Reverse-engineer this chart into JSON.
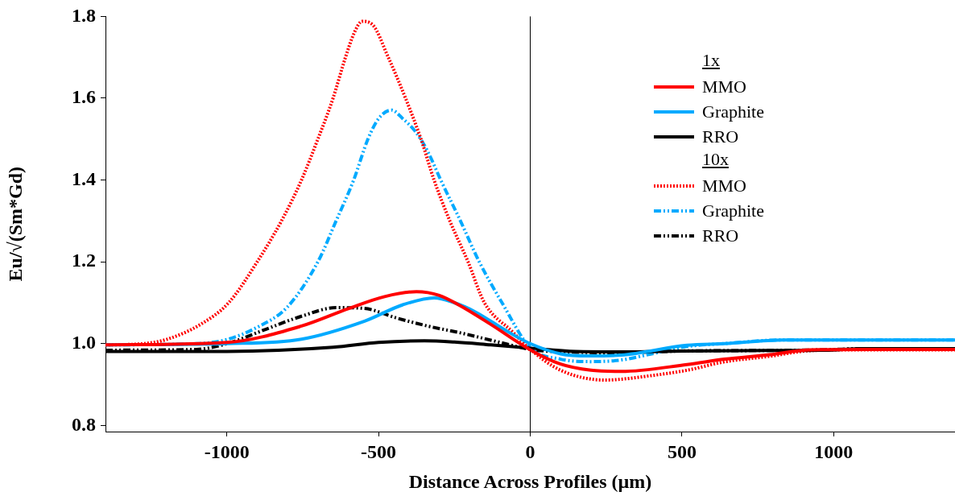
{
  "chart_data": {
    "type": "line",
    "xlabel": "Distance Across Profiles (µm)",
    "ylabel": "Eu/√(Sm*Gd)",
    "xlim": [
      -1400,
      1400
    ],
    "xticks": [
      -1000,
      -500,
      0,
      500,
      1000
    ],
    "ylim": [
      0.785,
      1.8
    ],
    "yticks": [
      0.8,
      {
        "value": 1,
        "label": "1.0"
      },
      1.2,
      1.4,
      1.6,
      1.8
    ],
    "grid": false,
    "legend": "top right",
    "marker": "none",
    "annotations": [
      "1x",
      "10x"
    ],
    "ref_lines": [
      {
        "axis": "x",
        "value": 0,
        "color": "#000000",
        "line_style": "solid"
      }
    ],
    "series": [
      {
        "name": "MMO",
        "color": "#ff0000",
        "line_style": "solid",
        "x": [
          -1400,
          -1000,
          -754,
          -598,
          -480,
          -375,
          -300,
          -234,
          -130,
          0,
          100,
          200,
          300,
          517,
          640,
          789,
          924,
          1100,
          1400
        ],
        "values": [
          0.997,
          1.003,
          1.043,
          1.086,
          1.115,
          1.127,
          1.118,
          1.094,
          1.047,
          0.985,
          0.95,
          0.935,
          0.932,
          0.949,
          0.962,
          0.973,
          0.985,
          0.986,
          0.986
        ]
      },
      {
        "name": "Graphite",
        "color": "#00aaff",
        "line_style": "solid",
        "x": [
          -1400,
          -1000,
          -754,
          -546,
          -420,
          -317,
          -250,
          -182,
          -78,
          0,
          100,
          194,
          300,
          517,
          640,
          834,
          1100,
          1400
        ],
        "values": [
          0.997,
          1.0,
          1.011,
          1.055,
          1.095,
          1.112,
          1.1,
          1.078,
          1.031,
          1.0,
          0.975,
          0.97,
          0.972,
          0.996,
          1.0,
          1.009,
          1.009,
          1.009
        ]
      },
      {
        "name": "RRO",
        "color": "#000000",
        "line_style": "solid",
        "x": [
          -1400,
          -1000,
          -650,
          -500,
          -349,
          -250,
          -130,
          0,
          150,
          300,
          500,
          700,
          970,
          1100,
          1400
        ],
        "values": [
          0.981,
          0.981,
          0.991,
          1.003,
          1.007,
          1.004,
          0.997,
          0.989,
          0.981,
          0.98,
          0.982,
          0.983,
          0.984,
          0.988,
          0.988
        ]
      },
      {
        "name": "MMO",
        "color": "#ff0000",
        "line_style": "dotted",
        "x": [
          -1400,
          -1275,
          -1200,
          -1087,
          -994,
          -900,
          -820,
          -754,
          -700,
          -650,
          -609,
          -580,
          -554,
          -520,
          -468,
          -411,
          -360,
          -317,
          -265,
          -205,
          -151,
          -60,
          0,
          100,
          245,
          400,
          517,
          636,
          789,
          924,
          1100,
          1400
        ],
        "values": [
          0.997,
          1.0,
          1.01,
          1.047,
          1.1,
          1.2,
          1.3,
          1.4,
          1.5,
          1.6,
          1.7,
          1.76,
          1.788,
          1.78,
          1.7,
          1.6,
          1.5,
          1.4,
          1.3,
          1.2,
          1.1,
          1.03,
          0.986,
          0.935,
          0.911,
          0.922,
          0.935,
          0.955,
          0.969,
          0.983,
          0.985,
          0.985
        ]
      },
      {
        "name": "Graphite",
        "color": "#00aaff",
        "line_style": "dashed",
        "x": [
          -1400,
          -1100,
          -1000,
          -900,
          -800,
          -700,
          -640,
          -582,
          -535,
          -500,
          -457,
          -420,
          -380,
          -338,
          -295,
          -230,
          -168,
          -93,
          0,
          100,
          200,
          300,
          400,
          517,
          636,
          834,
          1100,
          1400
        ],
        "values": [
          0.997,
          1.0,
          1.01,
          1.04,
          1.09,
          1.2,
          1.3,
          1.4,
          1.5,
          1.55,
          1.571,
          1.55,
          1.52,
          1.47,
          1.4,
          1.3,
          1.2,
          1.1,
          0.99,
          0.962,
          0.956,
          0.96,
          0.975,
          0.993,
          1.0,
          1.009,
          1.009,
          1.009
        ]
      },
      {
        "name": "RRO",
        "color": "#000000",
        "line_style": "dashed",
        "x": [
          -1400,
          -1100,
          -1000,
          -858,
          -754,
          -640,
          -546,
          -442,
          -338,
          -234,
          -99,
          0,
          150,
          300,
          500,
          700,
          970,
          1100,
          1400
        ],
        "values": [
          0.984,
          0.986,
          1.0,
          1.039,
          1.067,
          1.088,
          1.086,
          1.063,
          1.043,
          1.027,
          1.003,
          0.986,
          0.979,
          0.978,
          0.982,
          0.983,
          0.985,
          0.988,
          0.988
        ]
      }
    ]
  }
}
